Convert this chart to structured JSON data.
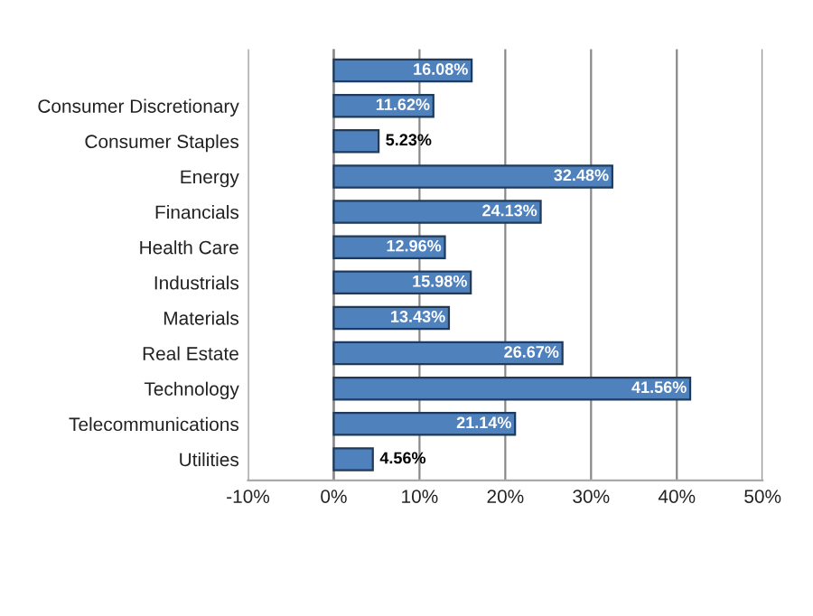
{
  "chart_data": {
    "type": "bar",
    "orientation": "horizontal",
    "categories": [
      null,
      "Consumer Discretionary",
      "Consumer Staples",
      "Energy",
      "Financials",
      "Health Care",
      "Industrials",
      "Materials",
      "Real Estate",
      "Technology",
      "Telecommunications",
      "Utilities"
    ],
    "values": [
      16.08,
      11.62,
      5.23,
      32.48,
      24.13,
      12.96,
      15.98,
      13.43,
      26.67,
      41.56,
      21.14,
      4.56
    ],
    "value_labels": [
      "16.08%",
      "11.62%",
      "5.23%",
      "32.48%",
      "24.13%",
      "12.96%",
      "15.98%",
      "13.43%",
      "26.67%",
      "41.56%",
      "21.14%",
      "4.56%"
    ],
    "color": "#4f81bd",
    "xlim": [
      -10,
      50
    ],
    "xticks": [
      {
        "value": -10,
        "label": "-10%"
      },
      {
        "value": 0,
        "label": "0%"
      },
      {
        "value": 10,
        "label": "10%"
      },
      {
        "value": 20,
        "label": "20%"
      },
      {
        "value": 30,
        "label": "30%"
      },
      {
        "value": 40,
        "label": "40%"
      },
      {
        "value": 50,
        "label": "50%"
      }
    ],
    "grid": "x",
    "legend": false
  }
}
